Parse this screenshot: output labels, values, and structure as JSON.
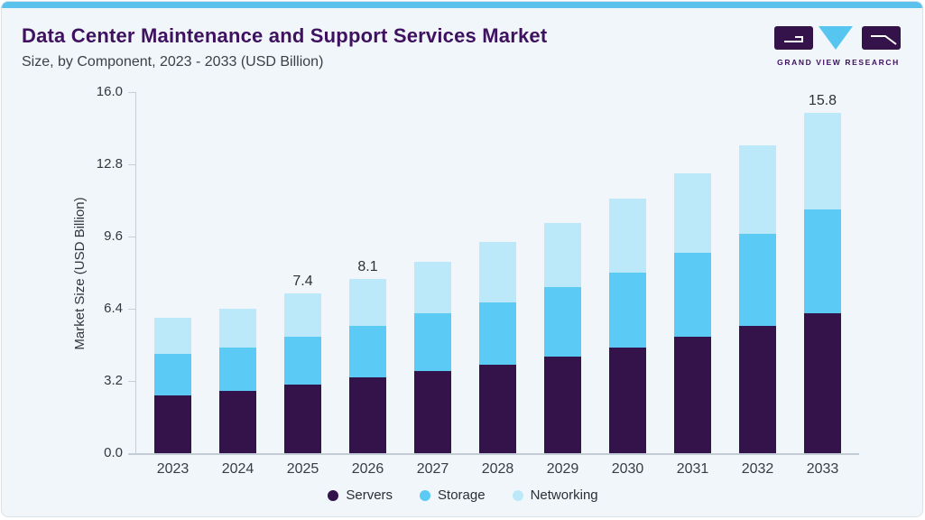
{
  "page": {
    "title": "Data Center Maintenance and Support Services Market",
    "subtitle": "Size, by Component, 2023 - 2033 (USD Billion)"
  },
  "logo": {
    "brand": "GRAND VIEW RESEARCH"
  },
  "colors": {
    "accent_strip": "#5ac2ec",
    "title": "#3f1260",
    "background": "#f1f6fa",
    "servers": "#331349",
    "storage": "#5bcbf5",
    "networking": "#bce9fa"
  },
  "chart_data": {
    "type": "bar",
    "stacked": true,
    "title": "Data Center Maintenance and Support Services Market Size, by Component, 2023 - 2033 (USD Billion)",
    "categories": [
      "2023",
      "2024",
      "2025",
      "2026",
      "2027",
      "2028",
      "2029",
      "2030",
      "2031",
      "2032",
      "2033"
    ],
    "series": [
      {
        "name": "Servers",
        "color": "#331349",
        "values": [
          2.7,
          2.9,
          3.2,
          3.5,
          3.8,
          4.1,
          4.5,
          4.9,
          5.4,
          5.9,
          6.5
        ]
      },
      {
        "name": "Storage",
        "color": "#5bcbf5",
        "values": [
          1.9,
          2.0,
          2.2,
          2.4,
          2.7,
          2.9,
          3.2,
          3.5,
          3.9,
          4.3,
          4.8
        ]
      },
      {
        "name": "Networking",
        "color": "#bce9fa",
        "values": [
          1.7,
          1.8,
          2.0,
          2.2,
          2.4,
          2.8,
          3.0,
          3.4,
          3.7,
          4.1,
          4.5
        ]
      }
    ],
    "totals": [
      6.3,
      6.7,
      7.4,
      8.1,
      8.9,
      9.8,
      10.7,
      11.8,
      13.0,
      14.3,
      15.8
    ],
    "annotations": [
      {
        "category": "2025",
        "text": "7.4"
      },
      {
        "category": "2026",
        "text": "8.1"
      },
      {
        "category": "2033",
        "text": "15.8"
      }
    ],
    "xlabel": "",
    "ylabel": "Market Size (USD Billion)",
    "ylim": [
      0,
      16
    ],
    "yticks": [
      "0.0",
      "3.2",
      "6.4",
      "9.6",
      "12.8",
      "16.0"
    ],
    "grid": false,
    "legend": [
      "Servers",
      "Storage",
      "Networking"
    ],
    "legend_position": "bottom"
  }
}
